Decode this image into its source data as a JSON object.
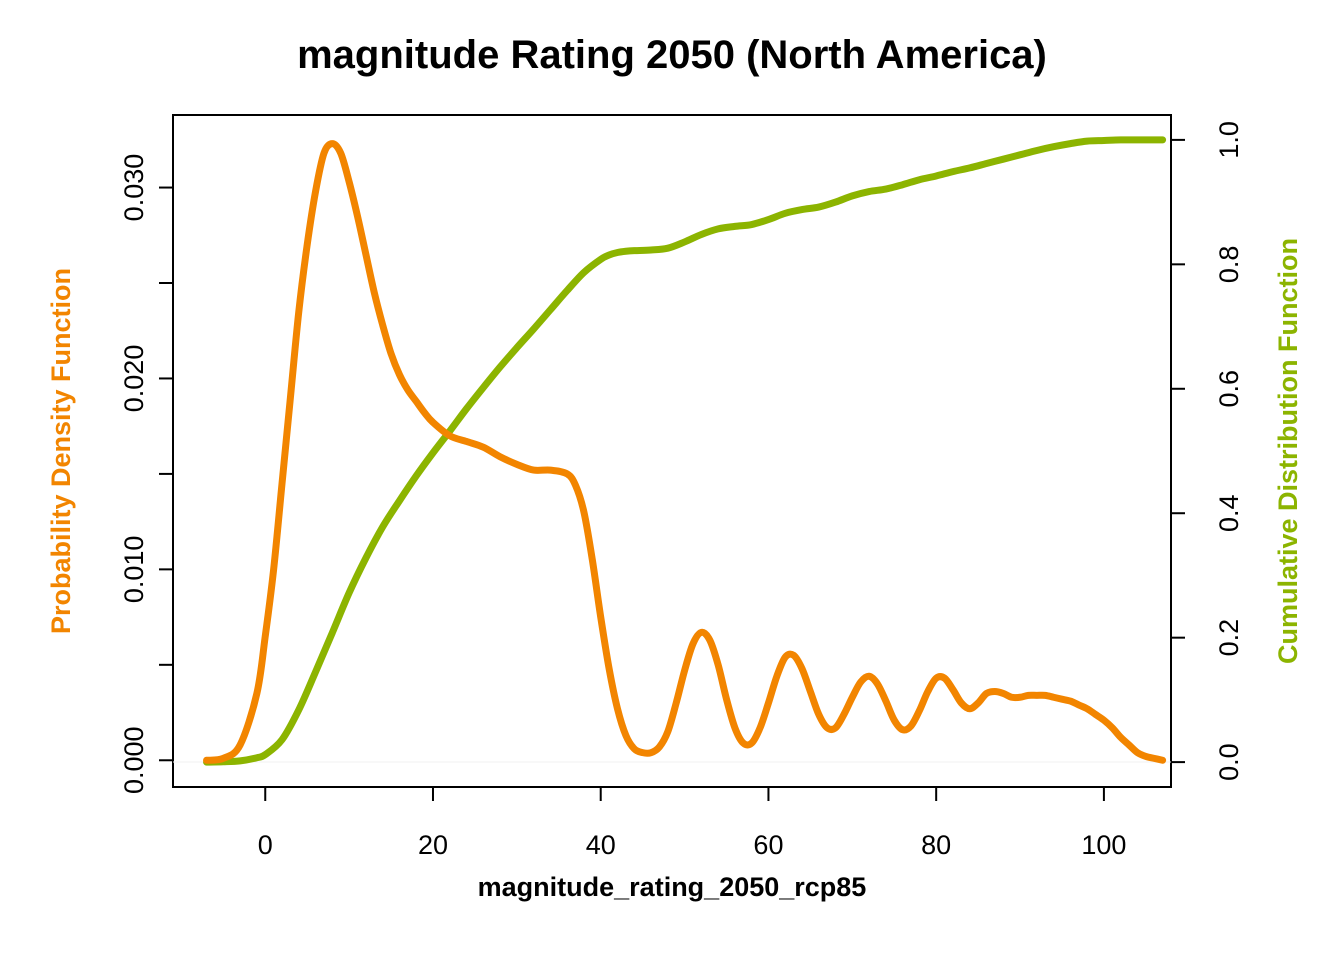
{
  "chart_data": {
    "type": "line",
    "title": "magnitude Rating 2050 (North America)",
    "xlabel": "magnitude_rating_2050_rcp85",
    "ylabel_left": "Probability Density Function",
    "ylabel_right": "Cumulative Distribution Function",
    "xlim": [
      -11,
      108
    ],
    "ylim_left": [
      -0.0014,
      0.0338
    ],
    "ylim_right": [
      -0.04,
      1.04
    ],
    "x_ticks": [
      "0",
      "20",
      "40",
      "60",
      "80",
      "100"
    ],
    "x_tick_values": [
      0,
      20,
      40,
      60,
      80,
      100
    ],
    "y_left_ticks": [
      "0.000",
      "0.010",
      "0.020",
      "0.030"
    ],
    "y_left_tick_values": [
      0,
      0.005,
      0.01,
      0.015,
      0.02,
      0.025,
      0.03
    ],
    "y_left_labeled_values": [
      0,
      0.01,
      0.02,
      0.03
    ],
    "y_right_ticks": [
      "0.0",
      "0.2",
      "0.4",
      "0.6",
      "0.8",
      "1.0"
    ],
    "y_right_tick_values": [
      0,
      0.2,
      0.4,
      0.6,
      0.8,
      1.0
    ],
    "grid": false,
    "colors": {
      "pdf": "#F28500",
      "cdf": "#8CB400",
      "axis": "#000000"
    },
    "series": [
      {
        "name": "Probability Density Function",
        "axis": "left",
        "x": [
          -7,
          -5,
          -3,
          -1,
          0,
          1,
          2,
          3,
          4,
          5,
          6,
          7,
          8,
          9,
          10,
          11,
          12,
          13,
          14,
          15,
          16,
          17,
          18,
          19,
          20,
          22,
          24,
          26,
          28,
          30,
          32,
          34,
          36,
          37,
          38,
          39,
          40,
          41,
          42,
          43,
          44,
          45,
          46,
          47,
          48,
          49,
          50,
          51,
          52,
          53,
          54,
          55,
          56,
          57,
          58,
          59,
          60,
          61,
          62,
          63,
          64,
          65,
          66,
          67,
          68,
          69,
          70,
          71,
          72,
          73,
          74,
          75,
          76,
          77,
          78,
          79,
          80,
          81,
          82,
          83,
          84,
          85,
          86,
          87,
          88,
          89,
          90,
          91,
          92,
          93,
          94,
          95,
          96,
          97,
          98,
          99,
          100,
          101,
          102,
          103,
          104,
          105,
          106,
          107
        ],
        "y": [
          0.0,
          0.0001,
          0.0008,
          0.0035,
          0.0065,
          0.01,
          0.0145,
          0.019,
          0.0235,
          0.027,
          0.0298,
          0.0318,
          0.0323,
          0.0318,
          0.0303,
          0.0285,
          0.0265,
          0.0245,
          0.0228,
          0.0213,
          0.0202,
          0.0194,
          0.0188,
          0.0182,
          0.0177,
          0.017,
          0.0167,
          0.0164,
          0.0159,
          0.0155,
          0.0152,
          0.0152,
          0.015,
          0.0144,
          0.013,
          0.0105,
          0.0075,
          0.0048,
          0.0027,
          0.0013,
          0.0006,
          0.0004,
          0.0004,
          0.0007,
          0.0015,
          0.003,
          0.0047,
          0.0061,
          0.0067,
          0.0063,
          0.005,
          0.0032,
          0.0017,
          0.0009,
          0.0009,
          0.0017,
          0.003,
          0.0044,
          0.0054,
          0.0055,
          0.0048,
          0.0036,
          0.0024,
          0.0017,
          0.0017,
          0.0024,
          0.0033,
          0.0041,
          0.0044,
          0.004,
          0.0031,
          0.0021,
          0.0016,
          0.0018,
          0.0026,
          0.0036,
          0.0043,
          0.0043,
          0.0037,
          0.003,
          0.0027,
          0.003,
          0.0035,
          0.0036,
          0.0035,
          0.0033,
          0.0033,
          0.0034,
          0.0034,
          0.0034,
          0.0033,
          0.0032,
          0.0031,
          0.0029,
          0.0027,
          0.0024,
          0.0021,
          0.0017,
          0.0012,
          0.0008,
          0.0004,
          0.0002,
          0.0001,
          0.0
        ]
      },
      {
        "name": "Cumulative Distribution Function",
        "axis": "right",
        "x": [
          -7,
          -5,
          -3,
          -1,
          0,
          2,
          4,
          6,
          8,
          10,
          12,
          14,
          16,
          18,
          20,
          22,
          24,
          26,
          28,
          30,
          32,
          34,
          36,
          38,
          40,
          41,
          42,
          43,
          44,
          46,
          48,
          50,
          52,
          54,
          56,
          58,
          60,
          62,
          64,
          66,
          68,
          70,
          72,
          74,
          76,
          78,
          80,
          82,
          84,
          86,
          88,
          90,
          92,
          94,
          96,
          98,
          100,
          102,
          104,
          106,
          107
        ],
        "y": [
          0.0,
          0.0005,
          0.002,
          0.007,
          0.012,
          0.036,
          0.084,
          0.145,
          0.208,
          0.272,
          0.328,
          0.378,
          0.42,
          0.46,
          0.497,
          0.532,
          0.568,
          0.602,
          0.635,
          0.666,
          0.696,
          0.727,
          0.758,
          0.787,
          0.808,
          0.815,
          0.819,
          0.821,
          0.822,
          0.823,
          0.826,
          0.836,
          0.848,
          0.857,
          0.861,
          0.864,
          0.872,
          0.882,
          0.888,
          0.892,
          0.9,
          0.91,
          0.917,
          0.921,
          0.928,
          0.936,
          0.942,
          0.949,
          0.955,
          0.962,
          0.969,
          0.976,
          0.983,
          0.989,
          0.994,
          0.998,
          0.999,
          1.0,
          1.0,
          1.0,
          1.0
        ]
      }
    ]
  }
}
